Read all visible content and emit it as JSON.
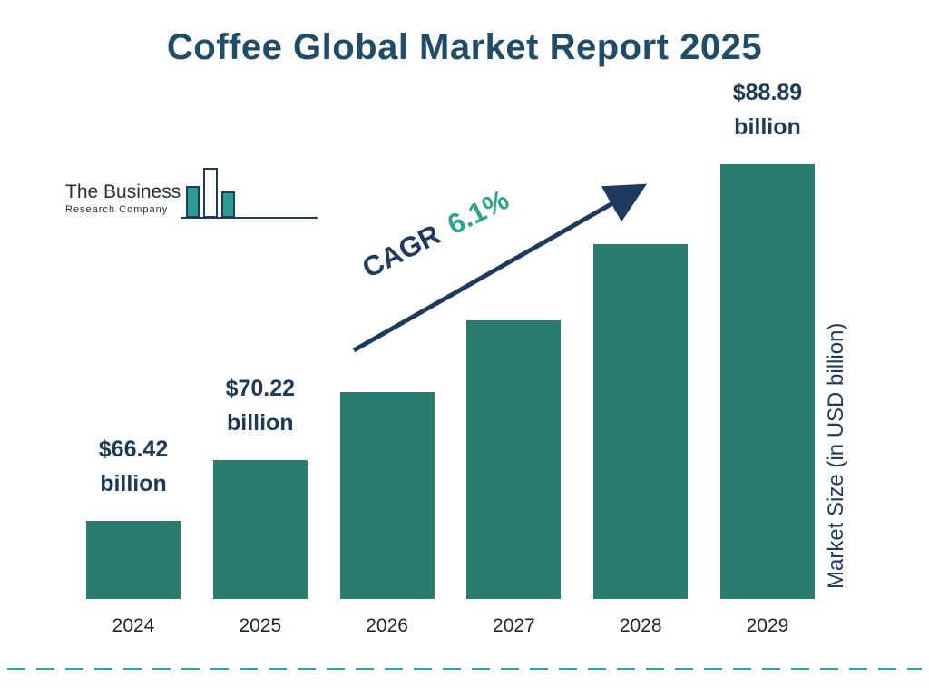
{
  "title": "Coffee Global Market Report 2025",
  "logo": {
    "line1": "The Business",
    "line2": "Research Company"
  },
  "cagr": {
    "label": "CAGR",
    "value": "6.1%"
  },
  "ylabel": "Market Size (in USD billion)",
  "colors": {
    "bar": "#2a7d6e",
    "navy": "#1e3a5f",
    "teal_accent": "#2aa391",
    "title": "#1f4d68"
  },
  "chart_data": {
    "type": "bar",
    "title": "Coffee Global Market Report 2025",
    "categories": [
      "2024",
      "2025",
      "2026",
      "2027",
      "2028",
      "2029"
    ],
    "values": [
      66.42,
      70.22,
      74.5,
      79.04,
      83.86,
      88.89
    ],
    "value_labels": [
      {
        "amount": "$66.42",
        "unit": "billion"
      },
      {
        "amount": "$70.22",
        "unit": "billion"
      },
      null,
      null,
      null,
      {
        "amount": "$88.89",
        "unit": "billion"
      }
    ],
    "xlabel": "",
    "ylabel": "Market Size (in USD billion)",
    "ylim": [
      61.5,
      90
    ],
    "grid": false,
    "legend": "none",
    "annotation": "CAGR 6.1%"
  }
}
